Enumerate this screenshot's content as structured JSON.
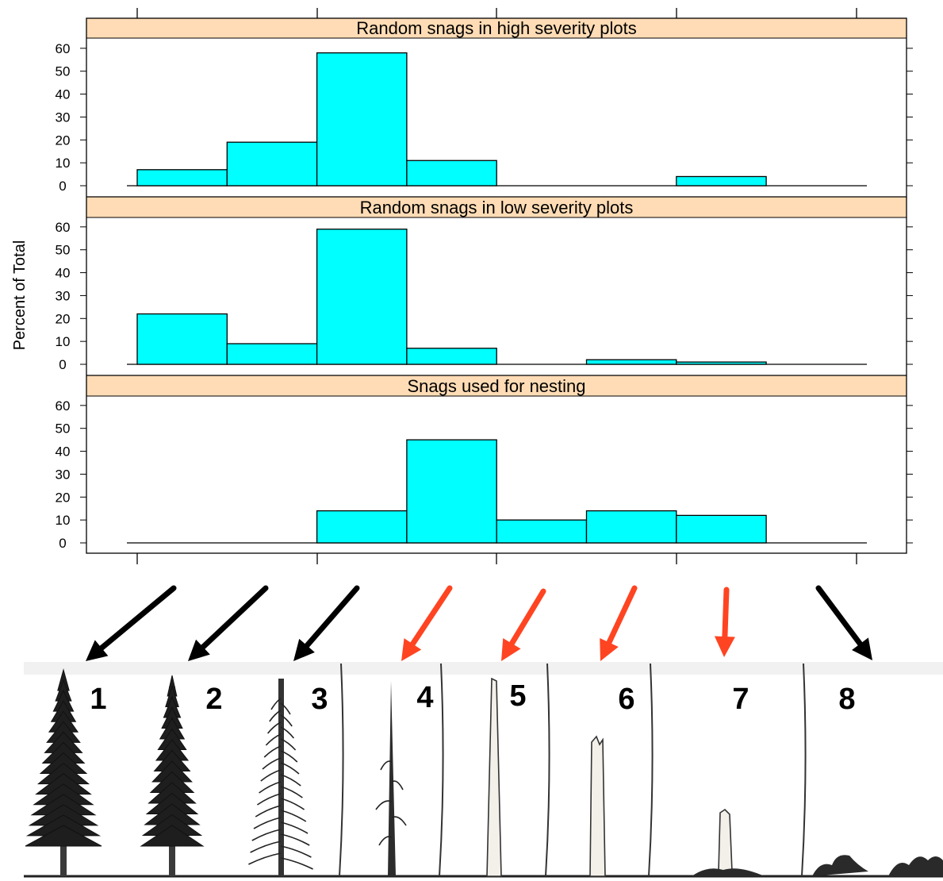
{
  "chart_data": {
    "type": "bar",
    "ylabel": "Percent of Total",
    "ylim": [
      0,
      60
    ],
    "yticks": [
      0,
      10,
      20,
      30,
      40,
      50,
      60
    ],
    "categories": [
      "1",
      "2",
      "3",
      "4",
      "5",
      "6",
      "7",
      "8"
    ],
    "bar_color": "#00ffff",
    "strip_color": "#ffdcb5",
    "panels": [
      {
        "title": "Random snags in high severity plots",
        "values": [
          7,
          19,
          58,
          11,
          0,
          0,
          4,
          0
        ]
      },
      {
        "title": "Random snags in low severity plots",
        "values": [
          22,
          9,
          59,
          7,
          0,
          2,
          1,
          0
        ]
      },
      {
        "title": "Snags used for nesting",
        "values": [
          0,
          0,
          14,
          45,
          10,
          14,
          12,
          0
        ]
      }
    ]
  },
  "stages": [
    {
      "label": "1",
      "arrow": "#000000",
      "kind": "live"
    },
    {
      "label": "2",
      "arrow": "#000000",
      "kind": "live"
    },
    {
      "label": "3",
      "arrow": "#000000",
      "kind": "live"
    },
    {
      "label": "4",
      "arrow": "#ff4422",
      "kind": "snag"
    },
    {
      "label": "5",
      "arrow": "#ff4422",
      "kind": "snag"
    },
    {
      "label": "6",
      "arrow": "#ff4422",
      "kind": "snag"
    },
    {
      "label": "7",
      "arrow": "#ff4422",
      "kind": "snag"
    },
    {
      "label": "8",
      "arrow": "#000000",
      "kind": "down"
    }
  ]
}
